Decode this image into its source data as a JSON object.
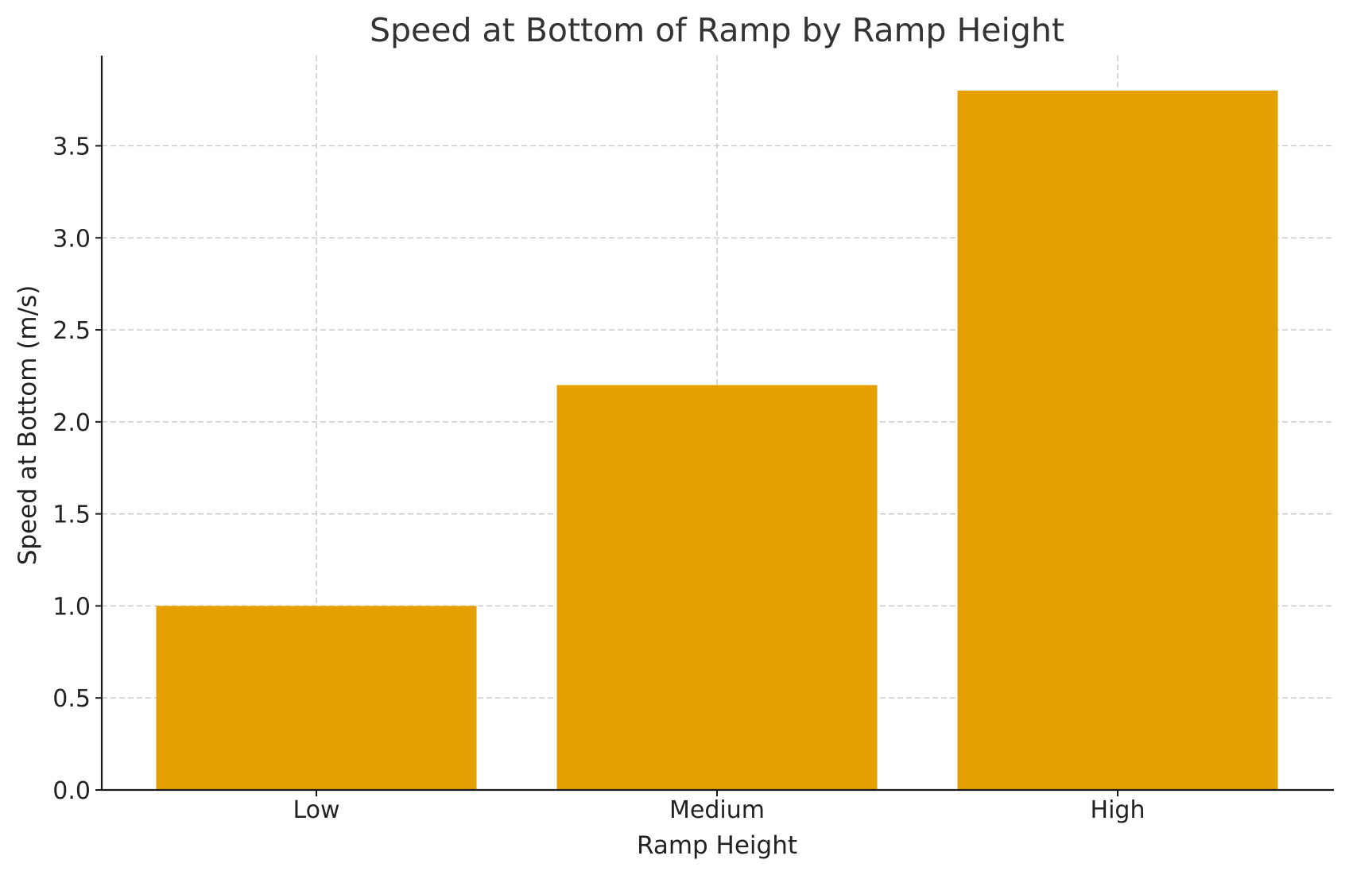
{
  "chart_data": {
    "type": "bar",
    "title": "Speed at Bottom of Ramp by Ramp Height",
    "xlabel": "Ramp Height",
    "ylabel": "Speed at Bottom (m/s)",
    "categories": [
      "Low",
      "Medium",
      "High"
    ],
    "values": [
      1.0,
      2.2,
      3.8
    ],
    "ylim": [
      0,
      3.99
    ],
    "yticks": [
      "0.0",
      "0.5",
      "1.0",
      "1.5",
      "2.0",
      "2.5",
      "3.0",
      "3.5"
    ],
    "grid": true,
    "bar_color": "#E69F00"
  }
}
